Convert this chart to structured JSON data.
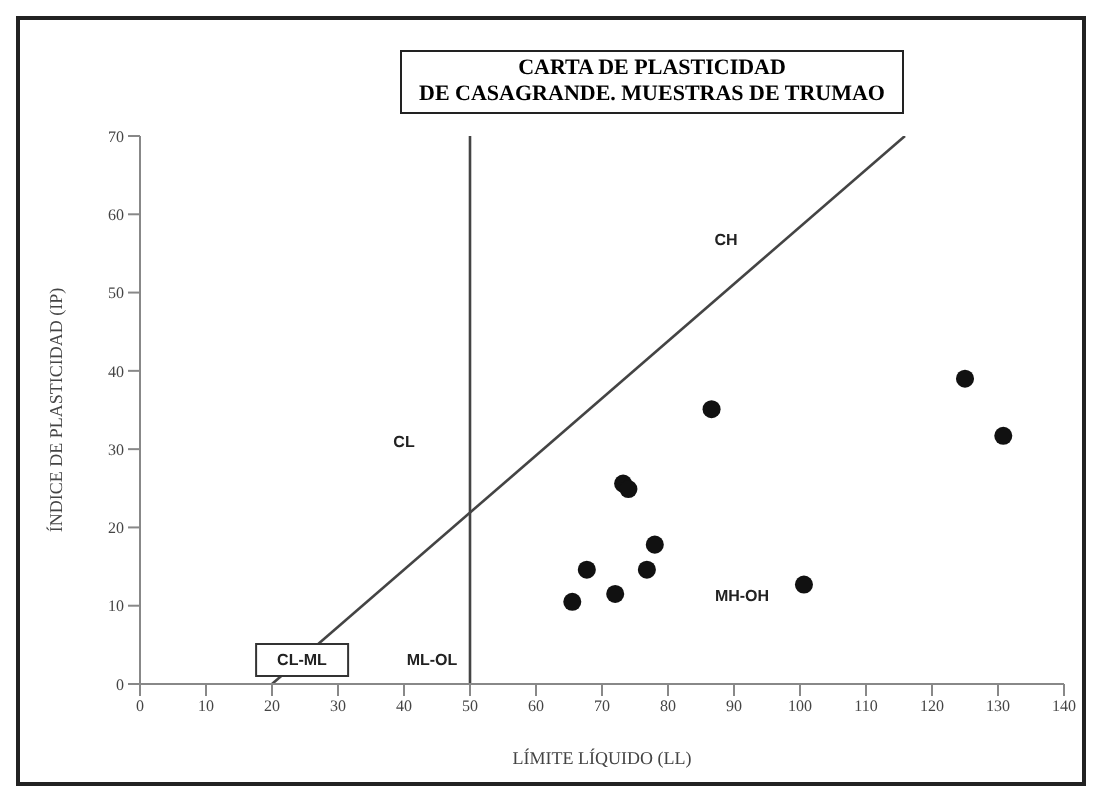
{
  "chart_data": {
    "type": "scatter",
    "title": "CARTA DE PLASTICIDAD\nDE CASAGRANDE. MUESTRAS DE TRUMAO",
    "xlabel": "LÍMITE LÍQUIDO (LL)",
    "ylabel": "ÍNDICE DE PLASTICIDAD (IP)",
    "xlim": [
      0,
      140
    ],
    "xticks": [
      0,
      10,
      20,
      30,
      40,
      50,
      60,
      70,
      80,
      90,
      100,
      110,
      120,
      130,
      140
    ],
    "ylim": [
      0,
      70
    ],
    "yticks": [
      0,
      10,
      20,
      30,
      40,
      50,
      60,
      70
    ],
    "grid": false,
    "series": [
      {
        "marker": "circle",
        "color": "#111111",
        "x": [
          65.5,
          67.7,
          72,
          76.8,
          78,
          73.2,
          74,
          86.6,
          100.6,
          125,
          130.8
        ],
        "values": [
          10.5,
          14.6,
          11.5,
          14.6,
          17.8,
          25.6,
          24.9,
          35.1,
          12.7,
          39,
          31.7
        ]
      },
      {
        "type": "line",
        "color": "#444444",
        "marker": "none",
        "x": [
          20,
          115.9
        ],
        "values": [
          0,
          70
        ]
      }
    ],
    "ref_lines": [
      {
        "axis": "x",
        "value": 50,
        "color": "#444444"
      }
    ],
    "annotations": [
      "CH",
      "CL",
      "CL-ML",
      "ML-OL",
      "MH-OH"
    ]
  }
}
